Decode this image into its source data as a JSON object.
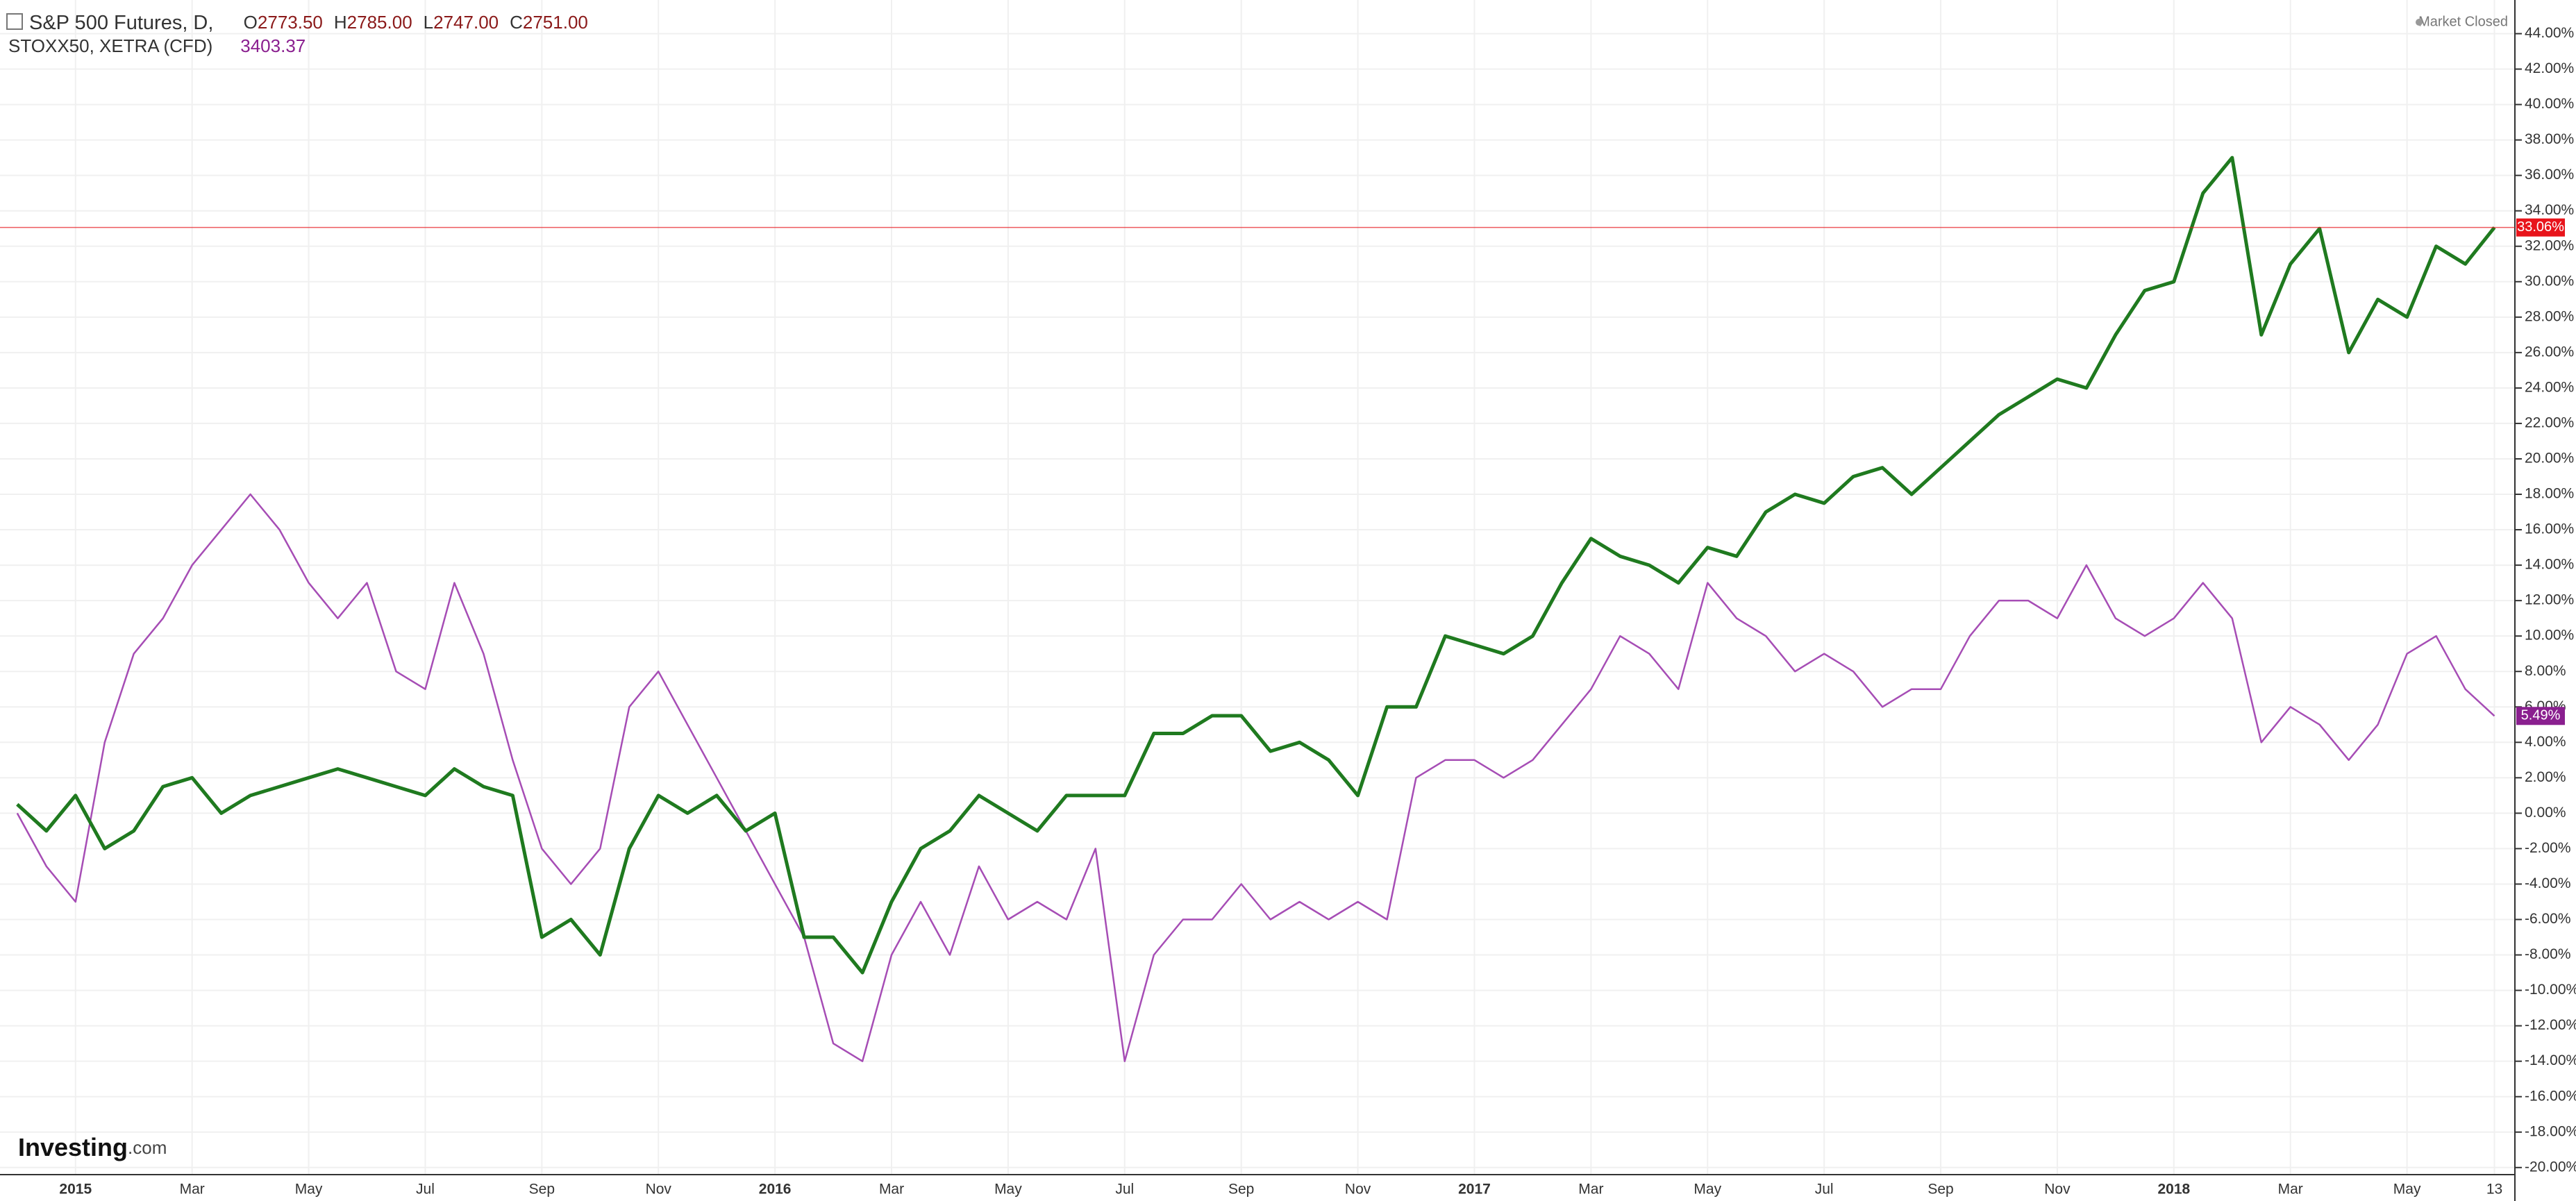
{
  "header": {
    "title": "S&P 500 Futures, D,",
    "ohlc": [
      {
        "key": "O",
        "value": "2773.50"
      },
      {
        "key": "H",
        "value": "2785.00"
      },
      {
        "key": "L",
        "value": "2747.00"
      },
      {
        "key": "C",
        "value": "2751.00"
      }
    ],
    "compare": "STOXX50, XETRA (CFD)",
    "compare_value": "3403.37",
    "status": "Market Closed",
    "logo": "Investing",
    "logo_suffix": ".com"
  },
  "chart_data": {
    "type": "line",
    "categories": [
      null,
      null,
      "2015",
      null,
      null,
      null,
      "Mar",
      null,
      null,
      null,
      "May",
      null,
      null,
      null,
      "Jul",
      null,
      null,
      null,
      "Sep",
      null,
      null,
      null,
      "Nov",
      null,
      null,
      null,
      "2016",
      null,
      null,
      null,
      "Mar",
      null,
      null,
      null,
      "May",
      null,
      null,
      null,
      "Jul",
      null,
      null,
      null,
      "Sep",
      null,
      null,
      null,
      "Nov",
      null,
      null,
      null,
      "2017",
      null,
      null,
      null,
      "Mar",
      null,
      null,
      null,
      "May",
      null,
      null,
      null,
      "Jul",
      null,
      null,
      null,
      "Sep",
      null,
      null,
      null,
      "Nov",
      null,
      null,
      null,
      "2018",
      null,
      null,
      null,
      "Mar",
      null,
      null,
      null,
      "May",
      null,
      null,
      "13"
    ],
    "series": [
      {
        "name": "S&P 500 Futures",
        "color": "#1f7a1f",
        "label_color": "#e8141b",
        "last_value_label": "33.06%",
        "values": [
          0.5,
          -1,
          1,
          -2,
          -1,
          1.5,
          2,
          0,
          1,
          1.5,
          2,
          2.5,
          2,
          1.5,
          1,
          2.5,
          1.5,
          1,
          -7,
          -6,
          -8,
          -2,
          1,
          0,
          1,
          -1,
          0,
          -7,
          -7,
          -9,
          -5,
          -2,
          -1,
          1,
          0,
          -1,
          1,
          1,
          1,
          4.5,
          4.5,
          5.5,
          5.5,
          3.5,
          4,
          3,
          1,
          6,
          6,
          10,
          9.5,
          9,
          10,
          13,
          15.5,
          14.5,
          14,
          13,
          15,
          14.5,
          17,
          18,
          17.5,
          19,
          19.5,
          18,
          19.5,
          21,
          22.5,
          23.5,
          24.5,
          24,
          27,
          29.5,
          30,
          35,
          37,
          27,
          31,
          33,
          26,
          29,
          28,
          32,
          31,
          33.06
        ]
      },
      {
        "name": "STOXX50",
        "color": "#a64db5",
        "label_color": "#8a1f8f",
        "last_value_label": "5.49%",
        "values": [
          0,
          -3,
          -5,
          4,
          9,
          11,
          14,
          16,
          18,
          16,
          13,
          11,
          13,
          8,
          7,
          13,
          9,
          3,
          -2,
          -4,
          -2,
          6,
          8,
          5,
          2,
          -1,
          -4,
          -7,
          -13,
          -14,
          -8,
          -5,
          -8,
          -3,
          -6,
          -5,
          -6,
          -2,
          -14,
          -8,
          -6,
          -6,
          -4,
          -6,
          -5,
          -6,
          -5,
          -6,
          2,
          3,
          3,
          2,
          3,
          5,
          7,
          10,
          9,
          7,
          13,
          11,
          10,
          8,
          9,
          8,
          6,
          7,
          7,
          10,
          12,
          12,
          11,
          14,
          11,
          10,
          11,
          13,
          11,
          4,
          6,
          5,
          3,
          5,
          9,
          10,
          7,
          5.49
        ]
      }
    ],
    "ylim": [
      -20.4,
      45.9
    ],
    "yticks": [
      {
        "value": -20,
        "label": "-20.00%"
      },
      {
        "value": -18,
        "label": "-18.00%"
      },
      {
        "value": -16,
        "label": "-16.00%"
      },
      {
        "value": -14,
        "label": "-14.00%"
      },
      {
        "value": -12,
        "label": "-12.00%"
      },
      {
        "value": -10,
        "label": "-10.00%"
      },
      {
        "value": -8,
        "label": "-8.00%"
      },
      {
        "value": -6,
        "label": "-6.00%"
      },
      {
        "value": -4,
        "label": "-4.00%"
      },
      {
        "value": -2,
        "label": "-2.00%"
      },
      {
        "value": 0,
        "label": "0.00%"
      },
      {
        "value": 2,
        "label": "2.00%"
      },
      {
        "value": 4,
        "label": "4.00%"
      },
      {
        "value": 6,
        "label": "6.00%"
      },
      {
        "value": 8,
        "label": "8.00%"
      },
      {
        "value": 10,
        "label": "10.00%"
      },
      {
        "value": 12,
        "label": "12.00%"
      },
      {
        "value": 14,
        "label": "14.00%"
      },
      {
        "value": 16,
        "label": "16.00%"
      },
      {
        "value": 18,
        "label": "18.00%"
      },
      {
        "value": 20,
        "label": "20.00%"
      },
      {
        "value": 22,
        "label": "22.00%"
      },
      {
        "value": 24,
        "label": "24.00%"
      },
      {
        "value": 26,
        "label": "26.00%"
      },
      {
        "value": 28,
        "label": "28.00%"
      },
      {
        "value": 30,
        "label": "30.00%"
      },
      {
        "value": 32,
        "label": "32.00%"
      },
      {
        "value": 34,
        "label": "34.00%"
      },
      {
        "value": 36,
        "label": "36.00%"
      },
      {
        "value": 38,
        "label": "38.00%"
      },
      {
        "value": 40,
        "label": "40.00%"
      },
      {
        "value": 42,
        "label": "42.00%"
      },
      {
        "value": 44,
        "label": "44.00%"
      }
    ],
    "grid": true
  }
}
